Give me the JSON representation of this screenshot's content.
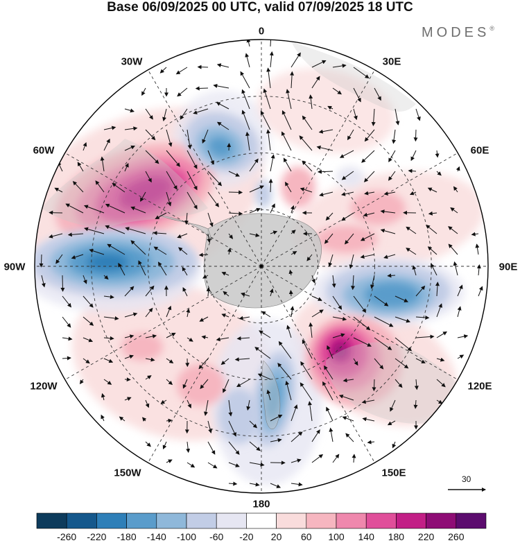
{
  "title": "Base 06/09/2025 00 UTC, valid 07/09/2025 18 UTC",
  "brand": "MODES",
  "brand_mark": "®",
  "longitude_labels": {
    "top": "0",
    "top_left": "30W",
    "top_right": "30E",
    "upper_left": "60W",
    "upper_right": "60E",
    "left": "90W",
    "right": "90E",
    "lower_left": "120W",
    "lower_right": "120E",
    "bottom_left": "150W",
    "bottom_right": "150E",
    "bottom": "180"
  },
  "reference_vector": {
    "value": "30"
  },
  "colorbar": {
    "levels": [
      "-260",
      "-220",
      "-180",
      "-140",
      "-100",
      "-60",
      "-20",
      "20",
      "60",
      "100",
      "140",
      "180",
      "220",
      "260"
    ],
    "colors": [
      "#0d3b5c",
      "#15588c",
      "#2e7fb8",
      "#5a9ccb",
      "#8fb8da",
      "#c2cde6",
      "#e6e6f2",
      "#ffffff",
      "#f9dcdc",
      "#f6b6c0",
      "#ef88ad",
      "#e04f9a",
      "#c21f86",
      "#8e0d75",
      "#5c0c6e"
    ]
  },
  "colors": {
    "land": "#c8c8c8",
    "grid": "#333333",
    "frame": "#000000"
  }
}
